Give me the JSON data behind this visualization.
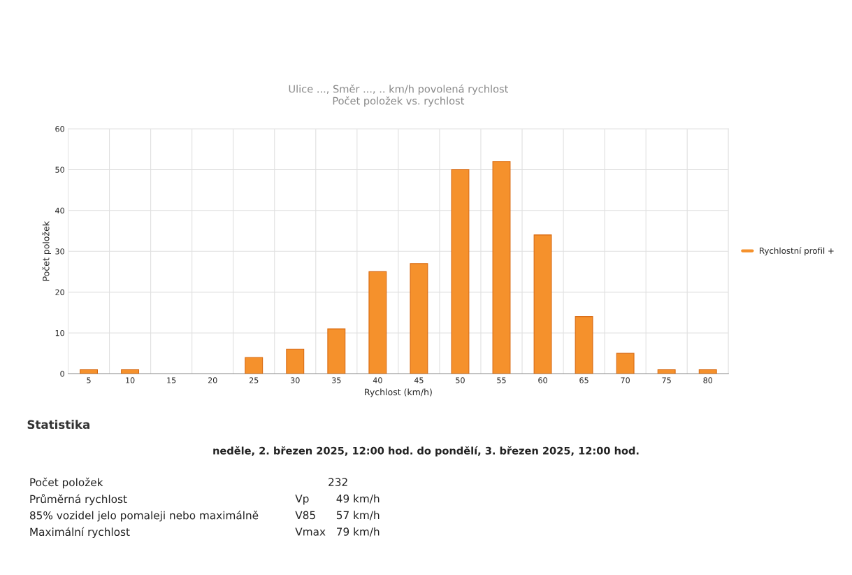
{
  "chart_data": [
    {
      "type": "bar",
      "title": "Ulice ..., Směr ..., .. km/h povolená rychlost",
      "subtitle": "Počet položek vs. rychlost",
      "xlabel": "Rychlost (km/h)",
      "ylabel": "Počet položek",
      "categories": [
        "5",
        "10",
        "15",
        "20",
        "25",
        "30",
        "35",
        "40",
        "45",
        "50",
        "55",
        "60",
        "65",
        "70",
        "75",
        "80"
      ],
      "series": [
        {
          "name": "Rychlostní profil +",
          "color": "#f5912c",
          "values": [
            1,
            1,
            0,
            0,
            4,
            6,
            11,
            25,
            27,
            50,
            52,
            34,
            14,
            5,
            1,
            1
          ]
        }
      ],
      "ylim": [
        0,
        60
      ],
      "yticks": [
        0,
        10,
        20,
        30,
        40,
        50,
        60
      ],
      "grid": true,
      "legend": "right"
    },
    {
      "type": "other",
      "title": "Statistika",
      "subtitle": "neděle, 2. březen 2025, 12:00 hod. do pondělí, 3. březen 2025, 12:00 hod.",
      "annotations": [
        "Počet položek",
        "232",
        "Průměrná rychlost",
        "Vp",
        "49 km/h",
        "85% vozidel jelo pomaleji nebo maximálně",
        "V85",
        "57 km/h",
        "Maximální rychlost",
        "Vmax",
        "79 km/h"
      ]
    }
  ]
}
